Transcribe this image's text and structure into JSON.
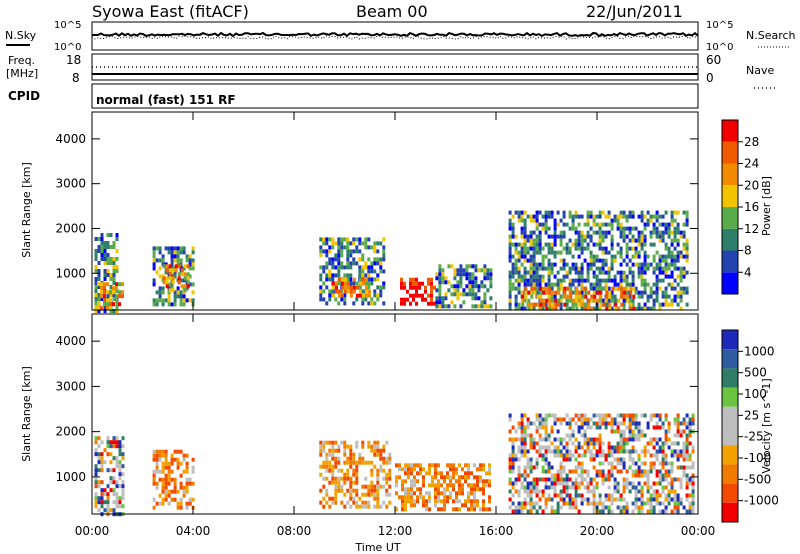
{
  "header": {
    "station": "Syowa East (fitACF)",
    "beam": "Beam 00",
    "date": "22/Jun/2011"
  },
  "side_labels": {
    "nsky": "N.Sky",
    "nsearch": "N.Search",
    "freq": "Freq.",
    "freq_unit": "[MHz]",
    "cpid": "CPID",
    "nave": "Nave"
  },
  "top_ticks": {
    "nsky_hi": "10^5",
    "nsky_lo": "10^0",
    "nsearch_hi": "10^5",
    "nsearch_lo": "10^0",
    "freq_hi": "18",
    "freq_lo": "8",
    "nave_hi": "60",
    "nave_lo": "0"
  },
  "program": "normal (fast) 151 RF",
  "colors": {
    "power_scale": [
      "#0000ff",
      "#2342b0",
      "#2e7f6a",
      "#5aab49",
      "#f2c400",
      "#f28b00",
      "#f25a00",
      "#f20000"
    ],
    "velocity_scale": [
      "#1c2ab7",
      "#2f5aa0",
      "#2f7d66",
      "#6ac43f",
      "#bebebe",
      "#bebebe",
      "#f2a200",
      "#f27a00",
      "#f24a00",
      "#f20000"
    ]
  },
  "chart_data": [
    {
      "type": "heatmap",
      "name": "power",
      "xlabel": "Time UT",
      "ylabel": "Slant Range [km]",
      "x_ticks": [
        "00:00",
        "04:00",
        "08:00",
        "12:00",
        "16:00",
        "20:00",
        "00:00"
      ],
      "y_ticks": [
        "1000",
        "2000",
        "3000",
        "4000"
      ],
      "xlim": [
        0,
        24
      ],
      "ylim": [
        180,
        4600
      ],
      "colorbar_label": "Power [dB]",
      "colorbar_ticks": [
        "4",
        "8",
        "12",
        "16",
        "20",
        "24",
        "28"
      ],
      "colorbar_range": [
        0,
        32
      ],
      "regions": [
        {
          "t0": 0.1,
          "t1": 1.0,
          "r0": 200,
          "r1": 1900,
          "level": "medium"
        },
        {
          "t0": 0.2,
          "t1": 1.2,
          "r0": 250,
          "r1": 800,
          "level": "high"
        },
        {
          "t0": 2.4,
          "t1": 4.0,
          "r0": 300,
          "r1": 1600,
          "level": "medium"
        },
        {
          "t0": 2.8,
          "t1": 3.8,
          "r0": 600,
          "r1": 1200,
          "level": "high"
        },
        {
          "t0": 9.0,
          "t1": 11.6,
          "r0": 300,
          "r1": 1800,
          "level": "medium"
        },
        {
          "t0": 9.5,
          "t1": 11.0,
          "r0": 500,
          "r1": 900,
          "level": "high"
        },
        {
          "t0": 12.2,
          "t1": 13.6,
          "r0": 300,
          "r1": 900,
          "level": "max"
        },
        {
          "t0": 13.6,
          "t1": 15.8,
          "r0": 300,
          "r1": 1200,
          "level": "medium"
        },
        {
          "t0": 16.5,
          "t1": 23.6,
          "r0": 250,
          "r1": 2400,
          "level": "medium"
        },
        {
          "t0": 17.0,
          "t1": 21.5,
          "r0": 200,
          "r1": 700,
          "level": "high"
        }
      ]
    },
    {
      "type": "heatmap",
      "name": "velocity",
      "xlabel": "Time UT",
      "ylabel": "Slant Range [km]",
      "x_ticks": [
        "00:00",
        "04:00",
        "08:00",
        "12:00",
        "16:00",
        "20:00",
        "00:00"
      ],
      "y_ticks": [
        "1000",
        "2000",
        "3000",
        "4000"
      ],
      "xlim": [
        0,
        24
      ],
      "ylim": [
        180,
        4600
      ],
      "colorbar_label": "Velocity [m s^-1]",
      "colorbar_ticks": [
        "1000",
        "500",
        "100",
        "25",
        "-25",
        "-100",
        "-500",
        "-1000"
      ],
      "regions": [
        {
          "t0": 0.1,
          "t1": 1.2,
          "r0": 200,
          "r1": 1900,
          "level": "mixed"
        },
        {
          "t0": 2.4,
          "t1": 4.0,
          "r0": 300,
          "r1": 1600,
          "level": "away"
        },
        {
          "t0": 9.0,
          "t1": 11.8,
          "r0": 300,
          "r1": 1800,
          "level": "away"
        },
        {
          "t0": 12.0,
          "t1": 15.8,
          "r0": 300,
          "r1": 1300,
          "level": "away"
        },
        {
          "t0": 16.5,
          "t1": 23.8,
          "r0": 250,
          "r1": 2400,
          "level": "mixed"
        }
      ]
    }
  ]
}
